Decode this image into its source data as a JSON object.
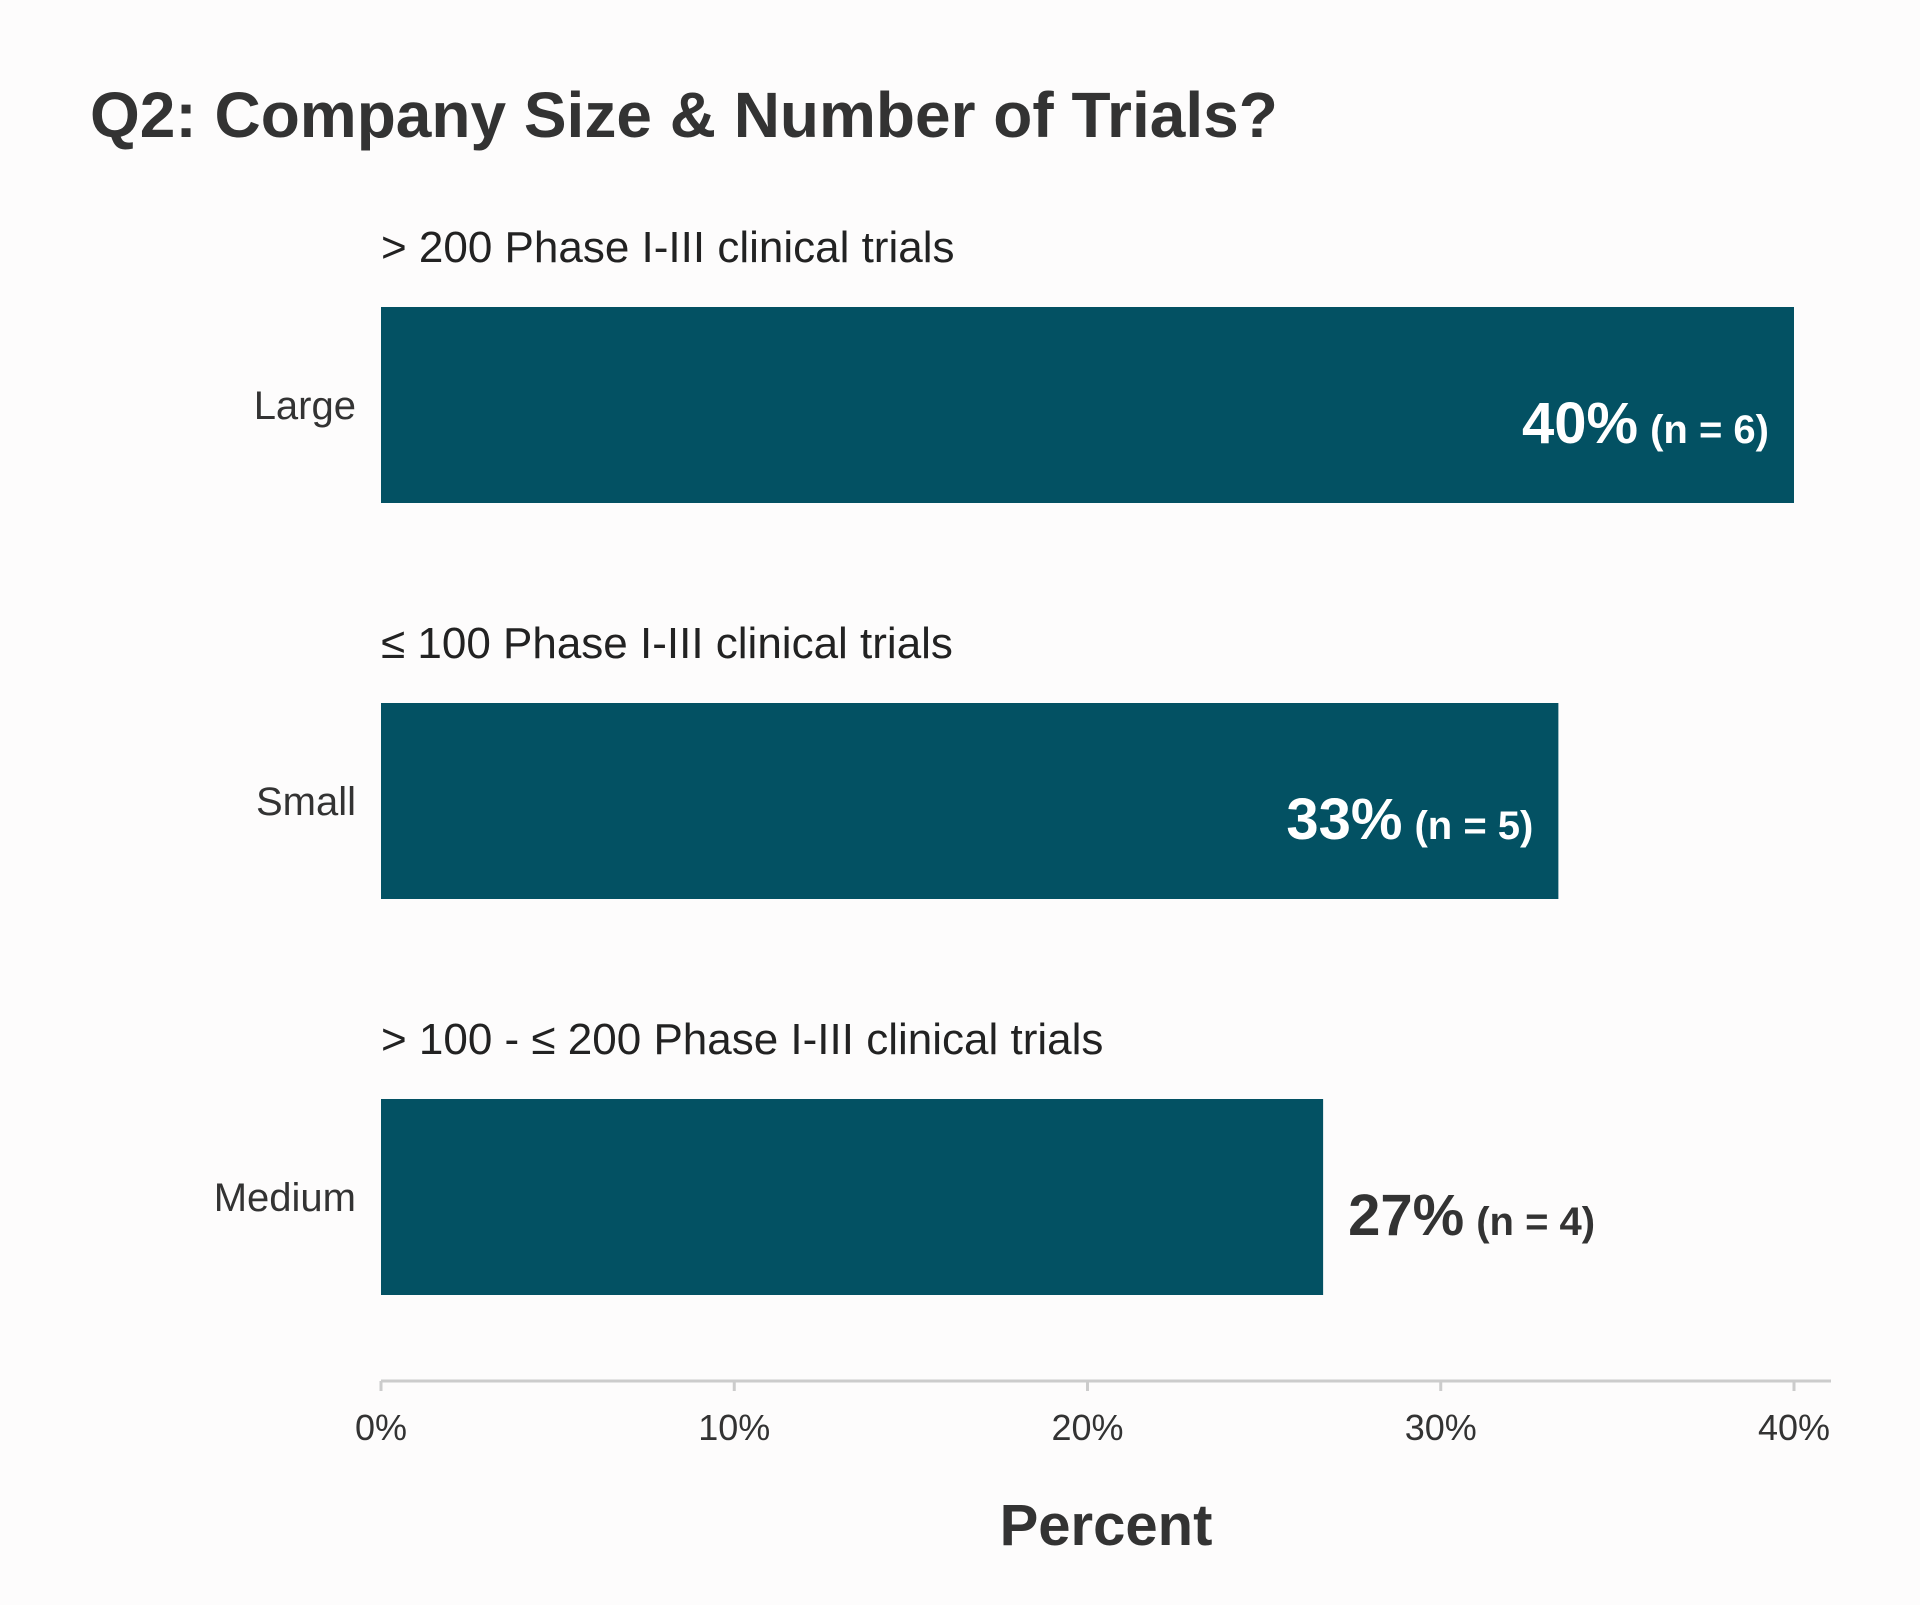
{
  "chart_data": {
    "type": "bar",
    "orientation": "horizontal",
    "title": "Q2: Company Size & Number of Trials?",
    "xlabel": "Percent",
    "ylabel": "",
    "xlim": [
      0,
      0.4
    ],
    "x_ticks": [
      {
        "value": 0.0,
        "label": "0%"
      },
      {
        "value": 0.1,
        "label": "10%"
      },
      {
        "value": 0.2,
        "label": "20%"
      },
      {
        "value": 0.3,
        "label": "30%"
      },
      {
        "value": 0.4,
        "label": "40%"
      }
    ],
    "grid": false,
    "categories": [
      "Large",
      "Small",
      "Medium"
    ],
    "values": [
      0.4,
      0.3333,
      0.2667
    ],
    "percent_labels": [
      "40%",
      "33%",
      "27%"
    ],
    "n_labels": [
      "(n = 6)",
      "(n = 5)",
      "(n = 4)"
    ],
    "descriptions": [
      "> 200 Phase I-III clinical trials",
      "≤ 100 Phase I-III clinical trials",
      "> 100 - ≤ 200 Phase I-III clinical trials"
    ],
    "bar_color": "#035163",
    "label_inside_color": "#ffffff",
    "label_outside_color": "#333333"
  }
}
